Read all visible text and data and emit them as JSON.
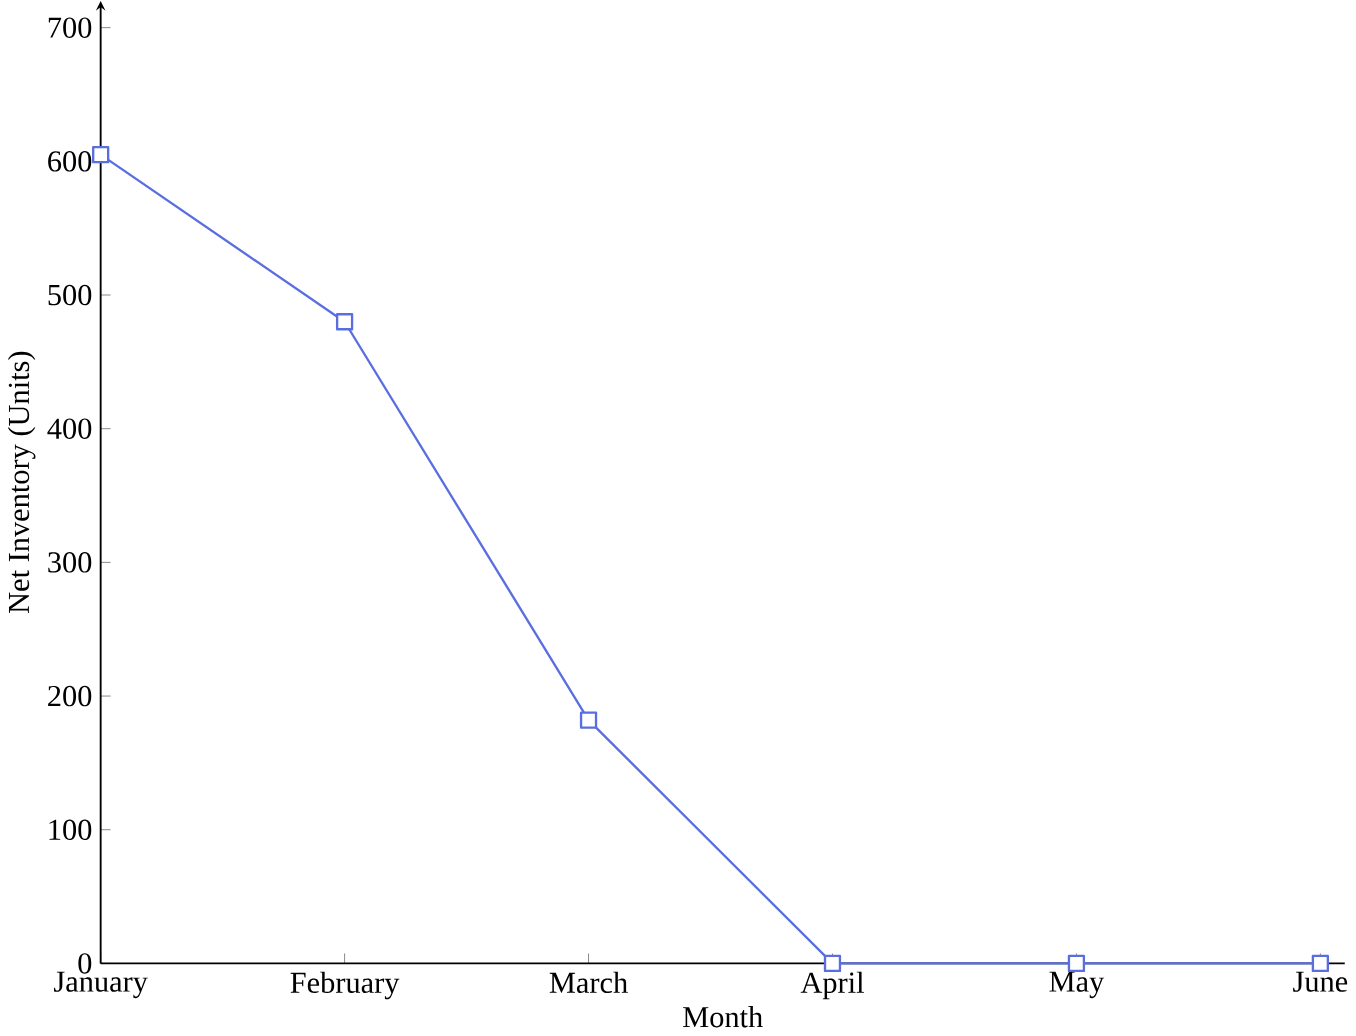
{
  "chart_data": {
    "type": "line",
    "xlabel": "Month",
    "ylabel": "Net Inventory (Units)",
    "categories": [
      "January",
      "February",
      "March",
      "April",
      "May",
      "June"
    ],
    "series": [
      {
        "color": "#5a6ee0",
        "values": [
          605,
          480,
          182,
          0,
          0,
          0
        ]
      }
    ],
    "ylim": [
      0,
      720
    ],
    "yticks": [
      0,
      100,
      200,
      300,
      400,
      500,
      600,
      700
    ],
    "marker": "square"
  }
}
